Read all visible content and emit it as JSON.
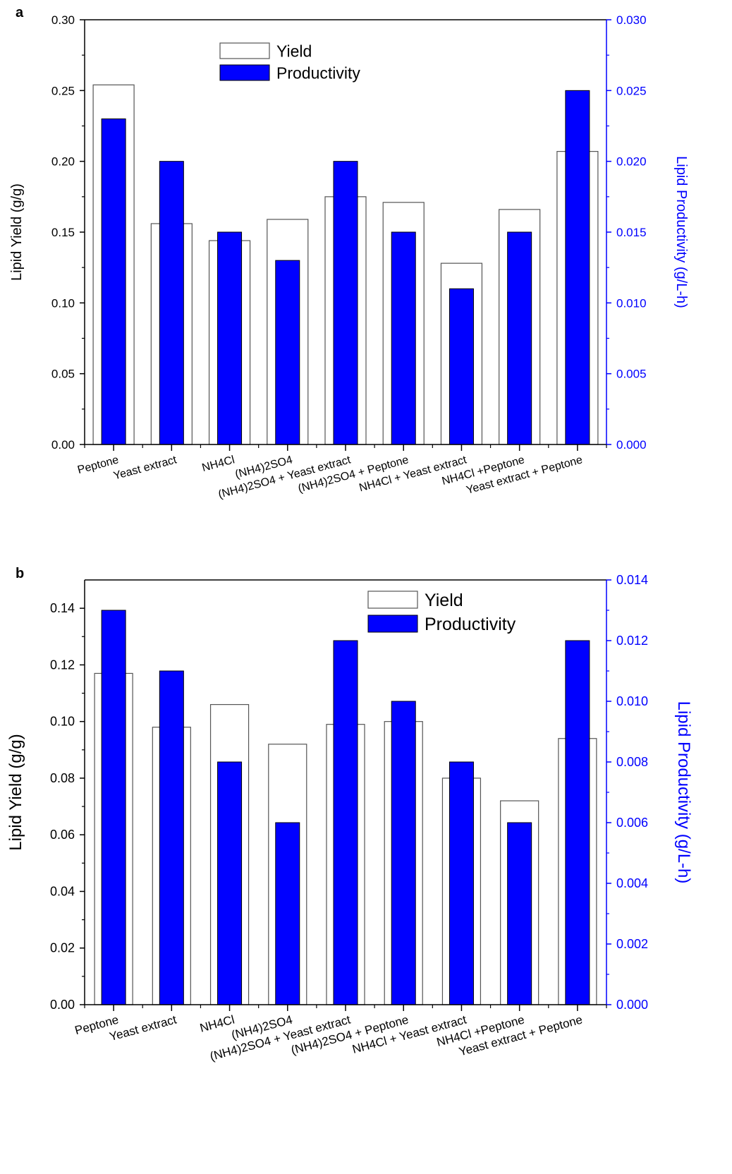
{
  "chart_data": [
    {
      "panel_label": "a",
      "type": "bar",
      "categories": [
        "Peptone",
        "Yeast extract",
        "NH4Cl",
        "(NH4)2SO4",
        "(NH4)2SO4 + Yeast extract",
        "(NH4)2SO4 + Peptone",
        "NH4Cl + Yeast extract",
        "NH4Cl +Peptone",
        "Yeast extract + Peptone"
      ],
      "series": [
        {
          "name": "Yield",
          "axis": "left",
          "values": [
            0.254,
            0.156,
            0.144,
            0.159,
            0.175,
            0.171,
            0.128,
            0.166,
            0.207
          ]
        },
        {
          "name": "Productivity",
          "axis": "right",
          "values": [
            0.023,
            0.02,
            0.015,
            0.013,
            0.02,
            0.015,
            0.011,
            0.015,
            0.025
          ]
        }
      ],
      "ylabel": "Lipid Yield (g/g)",
      "y2label": "Lipid Productivity (g/L-h)",
      "ylim": [
        0,
        0.3
      ],
      "y2lim": [
        0,
        0.03
      ],
      "yticks": [
        "0.00",
        "0.05",
        "0.10",
        "0.15",
        "0.20",
        "0.25",
        "0.30"
      ],
      "y2ticks": [
        "0.000",
        "0.005",
        "0.010",
        "0.015",
        "0.020",
        "0.025",
        "0.030"
      ],
      "legend_position": "top-center",
      "grid": false
    },
    {
      "panel_label": "b",
      "type": "bar",
      "categories": [
        "Peptone",
        "Yeast extract",
        "NH4Cl",
        "(NH4)2SO4",
        "(NH4)2SO4 + Yeast extract",
        "(NH4)2SO4 + Peptone",
        "NH4Cl + Yeast extract",
        "NH4Cl +Peptone",
        "Yeast extract + Peptone"
      ],
      "series": [
        {
          "name": "Yield",
          "axis": "left",
          "values": [
            0.117,
            0.098,
            0.106,
            0.092,
            0.099,
            0.1,
            0.08,
            0.072,
            0.094
          ]
        },
        {
          "name": "Productivity",
          "axis": "right",
          "values": [
            0.013,
            0.011,
            0.008,
            0.006,
            0.012,
            0.01,
            0.008,
            0.006,
            0.012
          ]
        }
      ],
      "ylabel": "Lipid Yield (g/g)",
      "y2label": "Lipid Productivity (g/L-h)",
      "ylim": [
        0,
        0.15
      ],
      "y2lim": [
        0,
        0.014
      ],
      "yticks": [
        "0.00",
        "0.02",
        "0.04",
        "0.06",
        "0.08",
        "0.10",
        "0.12",
        "0.14"
      ],
      "y2ticks": [
        "0.000",
        "0.002",
        "0.004",
        "0.006",
        "0.008",
        "0.010",
        "0.012",
        "0.014"
      ],
      "legend_position": "top-right",
      "grid": false
    }
  ],
  "colors": {
    "productivity_fill": "#0000ff",
    "yield_fill": "#ffffff",
    "yield_stroke": "#000000",
    "axis_left": "#000000",
    "axis_right": "#0000ff"
  }
}
